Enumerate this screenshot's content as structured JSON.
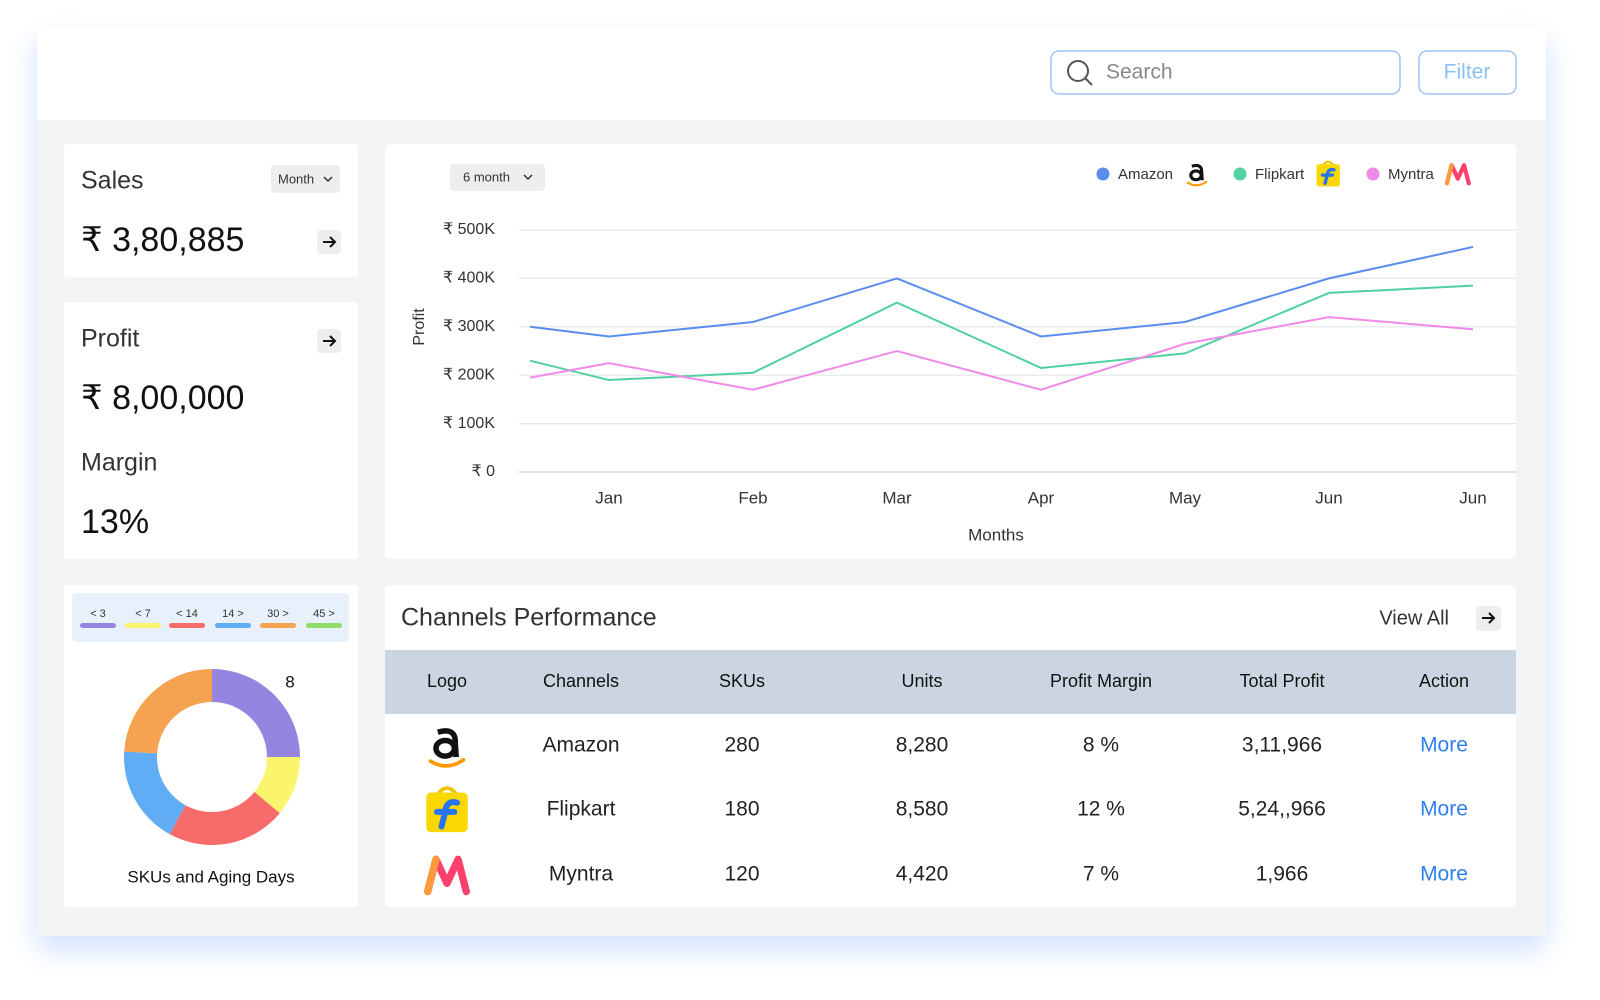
{
  "header": {
    "search_placeholder": "Search",
    "filter_button": "Filter"
  },
  "sales": {
    "title": "Sales",
    "period": "Month",
    "value": "₹ 3,80,885"
  },
  "profit": {
    "title": "Profit",
    "value": "₹ 8,00,000",
    "margin_title": "Margin",
    "margin_value": "13%"
  },
  "chart_data": [
    {
      "type": "line",
      "period": "6 month",
      "x_label": "Months",
      "y_label": "Profit",
      "categories": [
        null,
        "Jan",
        "Feb",
        "Mar",
        "Apr",
        "May",
        "Jun",
        "Jun"
      ],
      "series": [
        {
          "name": "Amazon",
          "color": "#5b8def",
          "values": [
            300000,
            280000,
            310000,
            400000,
            280000,
            310000,
            400000,
            465000
          ]
        },
        {
          "name": "Flipkart",
          "color": "#4fd1a0",
          "values": [
            230000,
            190000,
            205000,
            350000,
            215000,
            245000,
            370000,
            385000
          ]
        },
        {
          "name": "Myntra",
          "color": "#f08ae8",
          "values": [
            195000,
            225000,
            170000,
            250000,
            170000,
            265000,
            320000,
            295000
          ]
        }
      ],
      "ylim": [
        0,
        500000
      ],
      "yticks": [
        {
          "value": 0,
          "label": "₹ 0"
        },
        {
          "value": 100000,
          "label": "₹ 100K"
        },
        {
          "value": 200000,
          "label": "₹ 200K"
        },
        {
          "value": 300000,
          "label": "₹ 300K"
        },
        {
          "value": 400000,
          "label": "₹ 400K"
        },
        {
          "value": 500000,
          "label": "₹ 500K"
        }
      ],
      "grid": true,
      "legend": "top-right"
    },
    {
      "type": "pie",
      "donut": true,
      "title": "SKUs and Aging Days",
      "annotation": "8",
      "categories": [
        "< 3",
        "< 7",
        "< 14",
        "14 >",
        "30 >",
        "45 >"
      ],
      "values": [
        25,
        11,
        22,
        18,
        24,
        0
      ],
      "colors": [
        "#9585e0",
        "#fbf56e",
        "#f86b6b",
        "#60adf5",
        "#f6a351",
        "#8edc6a"
      ]
    }
  ],
  "table": {
    "title": "Channels Performance",
    "view_all": "View All",
    "columns": [
      "Logo",
      "Channels",
      "SKUs",
      "Units",
      "Profit Margin",
      "Total Profit",
      "Action"
    ],
    "rows": [
      [
        "Amazon",
        "280",
        "8,280",
        "8 %",
        "3,11,966",
        "More"
      ],
      [
        "Flipkart",
        "180",
        "8,580",
        "12 %",
        "5,24,,966",
        "More"
      ],
      [
        "Myntra",
        "120",
        "4,420",
        "7 %",
        "1,966",
        "More"
      ]
    ]
  }
}
